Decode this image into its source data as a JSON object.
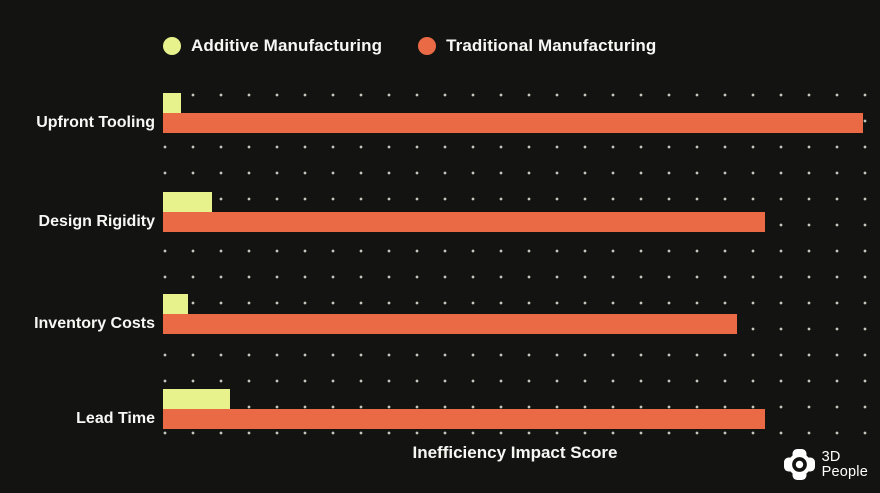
{
  "theme": {
    "background": "#131311",
    "text_color": "#f7f7f4",
    "dot_color": "#c6c6bd",
    "additive_color": "#e7f28c",
    "traditional_color": "#eb6a46"
  },
  "legend": {
    "items": [
      {
        "label": "Additive Manufacturing",
        "color": "#e7f28c"
      },
      {
        "label": "Traditional Manufacturing",
        "color": "#eb6a46"
      }
    ]
  },
  "chart_data": {
    "type": "bar",
    "orientation": "horizontal",
    "xlabel": "Inefficiency Impact Score",
    "ylabel": "",
    "xlim": [
      0,
      100
    ],
    "grid": "dotted",
    "legend_position": "top",
    "categories": [
      "Upfront Tooling",
      "Design Rigidity",
      "Inventory Costs",
      "Lead Time"
    ],
    "series": [
      {
        "name": "Additive Manufacturing",
        "color": "#e7f28c",
        "values": [
          2.5,
          7,
          3.5,
          9.5
        ]
      },
      {
        "name": "Traditional Manufacturing",
        "color": "#eb6a46",
        "values": [
          100,
          86,
          82,
          86
        ]
      }
    ]
  },
  "logo": {
    "line1": "3D",
    "line2": "People"
  }
}
